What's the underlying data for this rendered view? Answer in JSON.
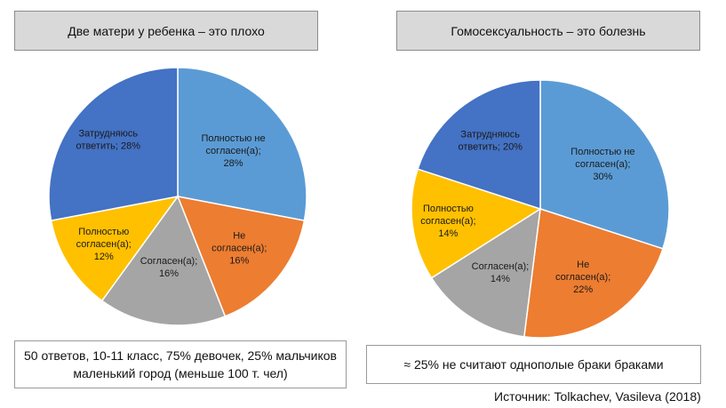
{
  "chart_data": [
    {
      "type": "pie",
      "title": "Две матери у ребенка – это плохо",
      "slices": [
        {
          "label_lines": [
            "Полностью не",
            "согласен(а);",
            "28%"
          ],
          "value": 28,
          "color": "#5b9bd5"
        },
        {
          "label_lines": [
            "Не",
            "согласен(а);",
            "16%"
          ],
          "value": 16,
          "color": "#ed7d31"
        },
        {
          "label_lines": [
            "Согласен(а);",
            "16%"
          ],
          "value": 16,
          "color": "#a5a5a5"
        },
        {
          "label_lines": [
            "Полностью",
            "согласен(а);",
            "12%"
          ],
          "value": 12,
          "color": "#ffc000"
        },
        {
          "label_lines": [
            "Затрудняюсь",
            "ответить; 28%"
          ],
          "value": 28,
          "color": "#4472c4"
        }
      ]
    },
    {
      "type": "pie",
      "title": "Гомосексуальность – это болезнь",
      "slices": [
        {
          "label_lines": [
            "Полностью не",
            "согласен(а);",
            "30%"
          ],
          "value": 30,
          "color": "#5b9bd5"
        },
        {
          "label_lines": [
            "Не",
            "согласен(а);",
            "22%"
          ],
          "value": 22,
          "color": "#ed7d31"
        },
        {
          "label_lines": [
            "Согласен(а);",
            "14%"
          ],
          "value": 14,
          "color": "#a5a5a5"
        },
        {
          "label_lines": [
            "Полностью",
            "согласен(а);",
            "14%"
          ],
          "value": 14,
          "color": "#ffc000"
        },
        {
          "label_lines": [
            "Затрудняюсь",
            "ответить; 20%"
          ],
          "value": 20,
          "color": "#4472c4"
        }
      ]
    }
  ],
  "notes": {
    "left_line1": "50 ответов, 10-11 класс, 75% девочек, 25% мальчиков",
    "left_line2": "маленький город (меньше 100 т. чел)",
    "right": "≈ 25% не считают однополые браки браками"
  },
  "source": "Источник: Tolkachev, Vasileva (2018)"
}
